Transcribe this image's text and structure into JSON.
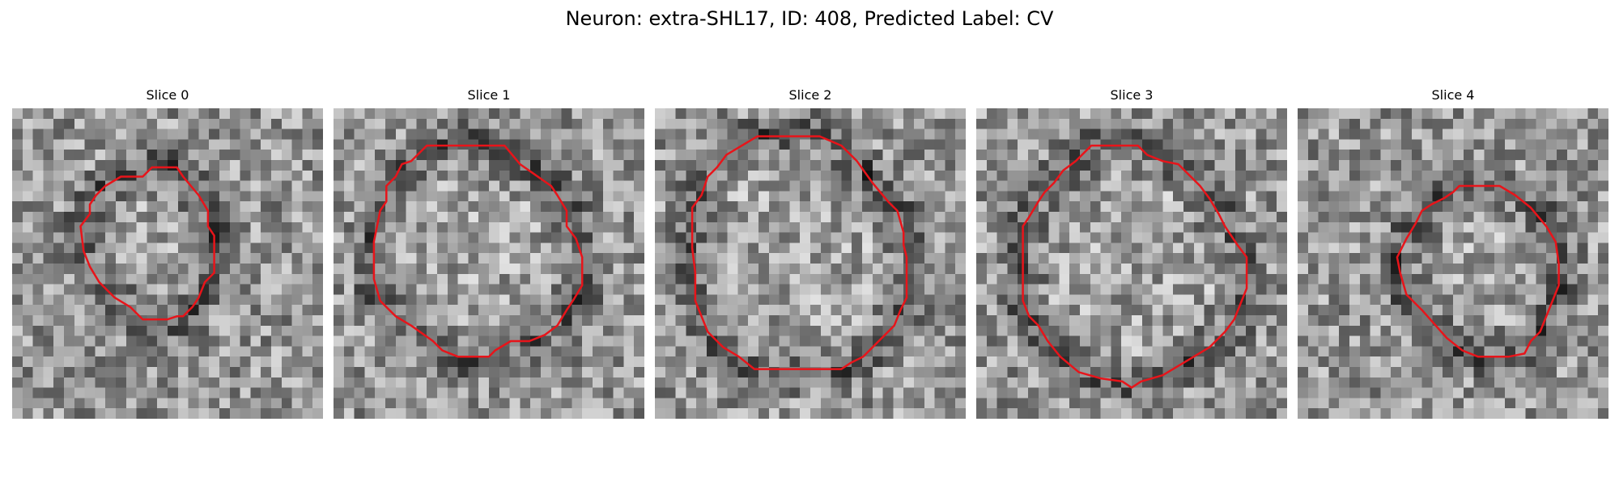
{
  "figure": {
    "title": "Neuron: extra-SHL17, ID: 408, Predicted Label: CV",
    "colormap": "gray",
    "contour_color": "#e8141a"
  },
  "panels": [
    {
      "title": "Slice 0",
      "contour": [
        [
          0.48,
          0.19
        ],
        [
          0.53,
          0.19
        ],
        [
          0.55,
          0.22
        ],
        [
          0.6,
          0.28
        ],
        [
          0.63,
          0.33
        ],
        [
          0.63,
          0.38
        ],
        [
          0.65,
          0.41
        ],
        [
          0.65,
          0.53
        ],
        [
          0.62,
          0.56
        ],
        [
          0.6,
          0.61
        ],
        [
          0.58,
          0.64
        ],
        [
          0.55,
          0.67
        ],
        [
          0.53,
          0.67
        ],
        [
          0.5,
          0.68
        ],
        [
          0.47,
          0.68
        ],
        [
          0.42,
          0.68
        ],
        [
          0.38,
          0.64
        ],
        [
          0.33,
          0.61
        ],
        [
          0.28,
          0.56
        ],
        [
          0.25,
          0.51
        ],
        [
          0.23,
          0.46
        ],
        [
          0.22,
          0.38
        ],
        [
          0.25,
          0.34
        ],
        [
          0.25,
          0.31
        ],
        [
          0.27,
          0.28
        ],
        [
          0.3,
          0.25
        ],
        [
          0.35,
          0.22
        ],
        [
          0.42,
          0.22
        ],
        [
          0.45,
          0.19
        ]
      ]
    },
    {
      "title": "Slice 1",
      "contour": [
        [
          0.3,
          0.12
        ],
        [
          0.55,
          0.12
        ],
        [
          0.6,
          0.18
        ],
        [
          0.7,
          0.25
        ],
        [
          0.72,
          0.28
        ],
        [
          0.75,
          0.33
        ],
        [
          0.75,
          0.38
        ],
        [
          0.78,
          0.42
        ],
        [
          0.8,
          0.48
        ],
        [
          0.8,
          0.57
        ],
        [
          0.77,
          0.62
        ],
        [
          0.75,
          0.65
        ],
        [
          0.72,
          0.7
        ],
        [
          0.68,
          0.73
        ],
        [
          0.63,
          0.75
        ],
        [
          0.57,
          0.75
        ],
        [
          0.52,
          0.78
        ],
        [
          0.5,
          0.8
        ],
        [
          0.4,
          0.8
        ],
        [
          0.35,
          0.78
        ],
        [
          0.32,
          0.75
        ],
        [
          0.25,
          0.7
        ],
        [
          0.2,
          0.67
        ],
        [
          0.15,
          0.62
        ],
        [
          0.13,
          0.55
        ],
        [
          0.13,
          0.43
        ],
        [
          0.15,
          0.33
        ],
        [
          0.17,
          0.3
        ],
        [
          0.17,
          0.25
        ],
        [
          0.2,
          0.22
        ],
        [
          0.22,
          0.18
        ],
        [
          0.25,
          0.17
        ]
      ]
    },
    {
      "title": "Slice 2",
      "contour": [
        [
          0.33,
          0.09
        ],
        [
          0.53,
          0.09
        ],
        [
          0.6,
          0.12
        ],
        [
          0.65,
          0.17
        ],
        [
          0.7,
          0.24
        ],
        [
          0.75,
          0.3
        ],
        [
          0.78,
          0.33
        ],
        [
          0.8,
          0.4
        ],
        [
          0.8,
          0.44
        ],
        [
          0.81,
          0.48
        ],
        [
          0.81,
          0.61
        ],
        [
          0.79,
          0.65
        ],
        [
          0.77,
          0.7
        ],
        [
          0.72,
          0.75
        ],
        [
          0.67,
          0.8
        ],
        [
          0.63,
          0.82
        ],
        [
          0.6,
          0.84
        ],
        [
          0.32,
          0.84
        ],
        [
          0.27,
          0.8
        ],
        [
          0.22,
          0.77
        ],
        [
          0.17,
          0.72
        ],
        [
          0.15,
          0.67
        ],
        [
          0.13,
          0.62
        ],
        [
          0.13,
          0.53
        ],
        [
          0.12,
          0.45
        ],
        [
          0.12,
          0.32
        ],
        [
          0.15,
          0.28
        ],
        [
          0.17,
          0.22
        ],
        [
          0.2,
          0.19
        ],
        [
          0.23,
          0.15
        ],
        [
          0.28,
          0.12
        ]
      ]
    },
    {
      "title": "Slice 3",
      "contour": [
        [
          0.37,
          0.12
        ],
        [
          0.52,
          0.12
        ],
        [
          0.55,
          0.15
        ],
        [
          0.6,
          0.17
        ],
        [
          0.65,
          0.18
        ],
        [
          0.68,
          0.21
        ],
        [
          0.72,
          0.25
        ],
        [
          0.75,
          0.29
        ],
        [
          0.78,
          0.34
        ],
        [
          0.8,
          0.38
        ],
        [
          0.82,
          0.41
        ],
        [
          0.84,
          0.44
        ],
        [
          0.87,
          0.48
        ],
        [
          0.87,
          0.58
        ],
        [
          0.85,
          0.63
        ],
        [
          0.83,
          0.68
        ],
        [
          0.8,
          0.72
        ],
        [
          0.75,
          0.77
        ],
        [
          0.7,
          0.8
        ],
        [
          0.65,
          0.83
        ],
        [
          0.6,
          0.86
        ],
        [
          0.53,
          0.88
        ],
        [
          0.5,
          0.9
        ],
        [
          0.47,
          0.88
        ],
        [
          0.4,
          0.87
        ],
        [
          0.33,
          0.85
        ],
        [
          0.27,
          0.8
        ],
        [
          0.23,
          0.75
        ],
        [
          0.2,
          0.7
        ],
        [
          0.17,
          0.67
        ],
        [
          0.15,
          0.62
        ],
        [
          0.15,
          0.38
        ],
        [
          0.17,
          0.35
        ],
        [
          0.2,
          0.3
        ],
        [
          0.22,
          0.27
        ],
        [
          0.25,
          0.24
        ],
        [
          0.28,
          0.2
        ],
        [
          0.32,
          0.17
        ]
      ]
    },
    {
      "title": "Slice 4",
      "contour": [
        [
          0.52,
          0.25
        ],
        [
          0.65,
          0.25
        ],
        [
          0.7,
          0.28
        ],
        [
          0.75,
          0.32
        ],
        [
          0.8,
          0.38
        ],
        [
          0.83,
          0.43
        ],
        [
          0.84,
          0.5
        ],
        [
          0.84,
          0.57
        ],
        [
          0.82,
          0.62
        ],
        [
          0.8,
          0.67
        ],
        [
          0.78,
          0.72
        ],
        [
          0.75,
          0.75
        ],
        [
          0.73,
          0.79
        ],
        [
          0.68,
          0.8
        ],
        [
          0.58,
          0.8
        ],
        [
          0.53,
          0.78
        ],
        [
          0.48,
          0.74
        ],
        [
          0.4,
          0.65
        ],
        [
          0.35,
          0.6
        ],
        [
          0.33,
          0.53
        ],
        [
          0.32,
          0.48
        ],
        [
          0.35,
          0.42
        ],
        [
          0.38,
          0.37
        ],
        [
          0.4,
          0.33
        ],
        [
          0.43,
          0.31
        ],
        [
          0.47,
          0.29
        ],
        [
          0.5,
          0.27
        ]
      ]
    }
  ]
}
